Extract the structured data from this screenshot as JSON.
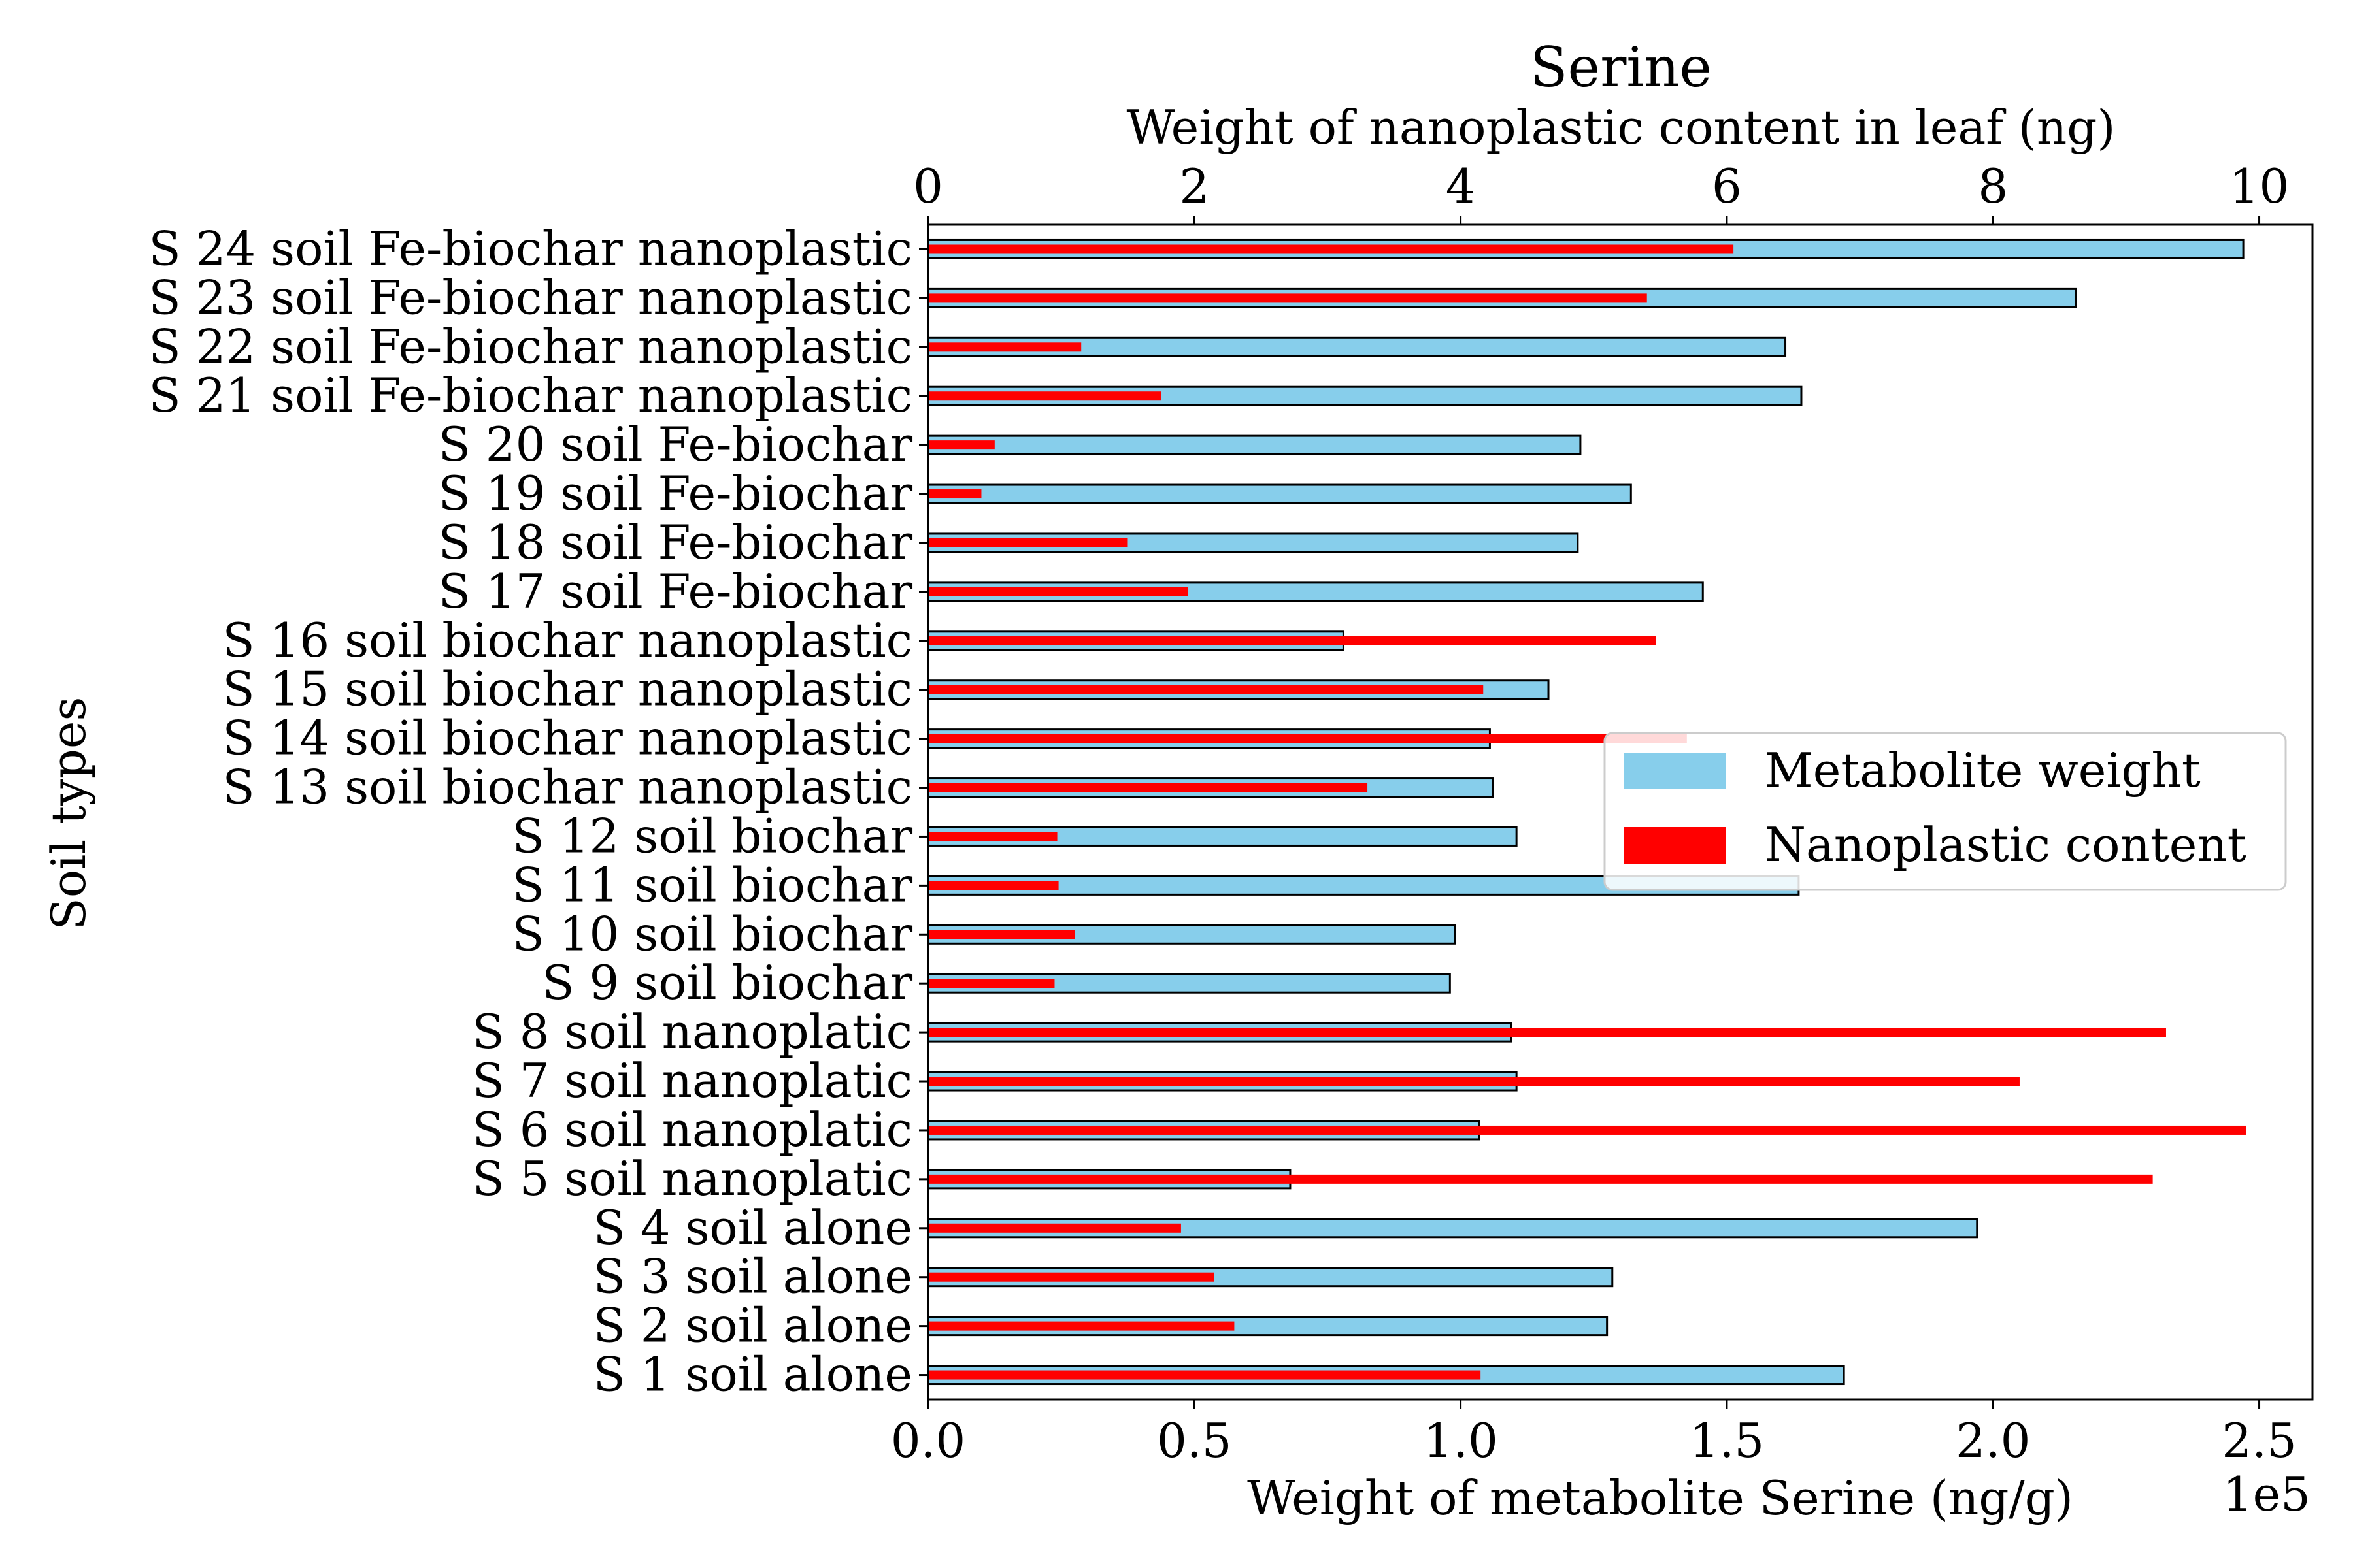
{
  "chart_data": {
    "type": "bar",
    "orientation": "horizontal",
    "title": "Serine",
    "title_color": "#a52a2a",
    "ylabel": "Soil types",
    "xlabel_bottom": "Weight of metabolite Serine (ng/g)",
    "xlabel_top": "Weight of nanoplastic content in leaf (ng)",
    "bottom_offset_label": "1e5",
    "bottom_axis": {
      "min": 0,
      "max": 2.6,
      "ticks": [
        0.0,
        0.5,
        1.0,
        1.5,
        2.0,
        2.5
      ],
      "tick_labels": [
        "0.0",
        "0.5",
        "1.0",
        "1.5",
        "2.0",
        "2.5"
      ]
    },
    "top_axis": {
      "min": 0,
      "max": 10.4,
      "ticks": [
        0,
        2,
        4,
        6,
        8,
        10
      ],
      "tick_labels": [
        "0",
        "2",
        "4",
        "6",
        "8",
        "10"
      ]
    },
    "grid": false,
    "legend_position": "center-right",
    "categories": [
      "S 1 soil alone",
      "S 2 soil alone",
      "S 3 soil alone",
      "S 4 soil alone",
      "S 5 soil nanoplatic",
      "S 6 soil nanoplatic",
      "S 7 soil nanoplatic",
      "S 8 soil nanoplatic",
      "S 9 soil biochar",
      "S 10 soil biochar",
      "S 11 soil biochar",
      "S 12 soil biochar",
      "S 13 soil biochar nanoplastic",
      "S 14 soil biochar nanoplastic",
      "S 15 soil biochar nanoplastic",
      "S 16 soil biochar nanoplastic",
      "S 17 soil Fe-biochar",
      "S 18 soil Fe-biochar",
      "S 19 soil Fe-biochar",
      "S 20 soil Fe-biochar",
      "S 21 soil Fe-biochar nanoplastic",
      "S 22 soil Fe-biochar nanoplastic",
      "S 23 soil Fe-biochar nanoplastic",
      "S 24 soil Fe-biochar nanoplastic"
    ],
    "series": [
      {
        "name": "Metabolite weight",
        "axis": "bottom",
        "color": "#87ceeb",
        "edgecolor": "#000000",
        "values": [
          1.72,
          1.275,
          1.285,
          1.97,
          0.68,
          1.035,
          1.105,
          1.095,
          0.98,
          0.99,
          1.635,
          1.105,
          1.06,
          1.055,
          1.165,
          0.78,
          1.455,
          1.22,
          1.32,
          1.225,
          1.64,
          1.61,
          2.155,
          2.47
        ]
      },
      {
        "name": "Nanoplastic content",
        "axis": "top",
        "color": "#ff0000",
        "values": [
          4.15,
          2.3,
          2.15,
          1.9,
          9.2,
          9.9,
          8.2,
          9.3,
          0.95,
          1.1,
          0.98,
          0.97,
          3.3,
          5.7,
          4.17,
          5.47,
          1.95,
          1.5,
          0.4,
          0.5,
          1.75,
          1.15,
          5.4,
          6.05
        ]
      }
    ]
  }
}
